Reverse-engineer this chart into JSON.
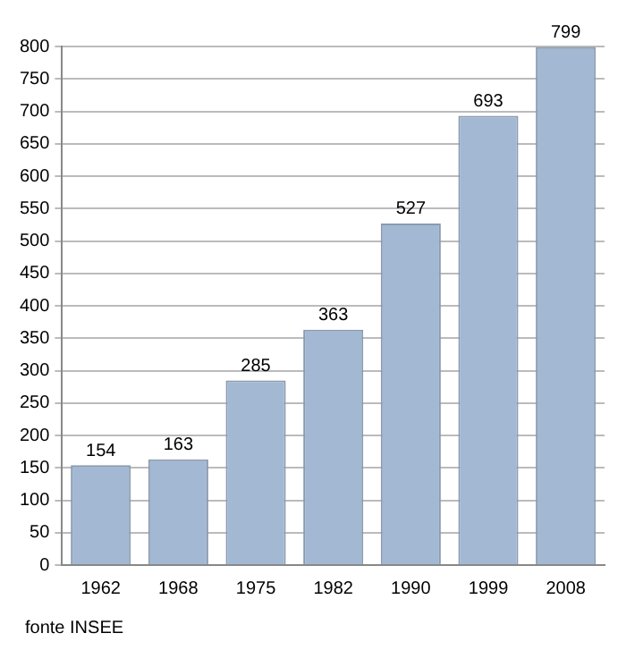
{
  "chart_data": {
    "type": "bar",
    "categories": [
      "1962",
      "1968",
      "1975",
      "1982",
      "1990",
      "1999",
      "2008"
    ],
    "values": [
      154,
      163,
      285,
      363,
      527,
      693,
      799
    ],
    "color": "#a3b8d3",
    "ylim": [
      0,
      800
    ],
    "yticks": [
      0,
      50,
      100,
      150,
      200,
      250,
      300,
      350,
      400,
      450,
      500,
      550,
      600,
      650,
      700,
      750,
      800
    ],
    "grid": "y",
    "data_labels": true,
    "legend": false,
    "annotations": [
      "fonte INSEE"
    ]
  }
}
